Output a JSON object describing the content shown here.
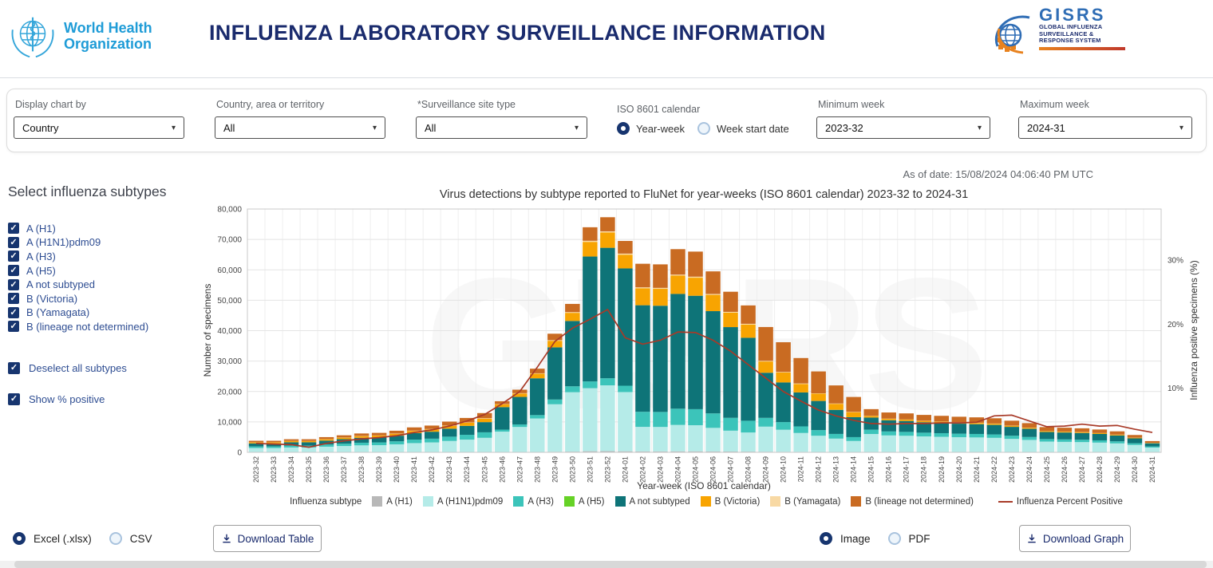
{
  "header": {
    "who_logo": {
      "line1": "World Health",
      "line2": "Organization"
    },
    "title": "INFLUENZA LABORATORY SURVEILLANCE INFORMATION",
    "gisrs_logo": {
      "acronym": "GISRS",
      "line1": "GLOBAL INFLUENZA",
      "line2": "SURVEILLANCE &",
      "line3": "RESPONSE SYSTEM"
    }
  },
  "filters": {
    "display_chart_by": {
      "label": "Display chart by",
      "value": "Country"
    },
    "country": {
      "label": "Country, area or territory",
      "value": "All"
    },
    "site_type": {
      "label": "*Surveillance site type",
      "value": "All"
    },
    "calendar": {
      "label": "ISO 8601 calendar",
      "options": [
        {
          "label": "Year-week",
          "selected": true
        },
        {
          "label": "Week start date",
          "selected": false
        }
      ]
    },
    "min_week": {
      "label": "Minimum week",
      "value": "2023-32"
    },
    "max_week": {
      "label": "Maximum week",
      "value": "2024-31"
    }
  },
  "as_of": "As of date: 15/08/2024 04:06:40 PM UTC",
  "sidebar": {
    "heading": "Select influenza subtypes",
    "subtypes": [
      {
        "label": "A (H1)",
        "checked": true
      },
      {
        "label": "A (H1N1)pdm09",
        "checked": true
      },
      {
        "label": "A (H3)",
        "checked": true
      },
      {
        "label": "A (H5)",
        "checked": true
      },
      {
        "label": "A not subtyped",
        "checked": true
      },
      {
        "label": "B (Victoria)",
        "checked": true
      },
      {
        "label": "B (Yamagata)",
        "checked": true
      },
      {
        "label": "B (lineage not determined)",
        "checked": true
      }
    ],
    "deselect_all": {
      "label": "Deselect all subtypes",
      "checked": true
    },
    "show_positive": {
      "label": "Show % positive",
      "checked": true
    }
  },
  "chart_data": {
    "type": "bar",
    "stacked": true,
    "title": "Virus detections by subtype reported to FluNet for year-weeks (ISO 8601 calendar) 2023-32 to 2024-31",
    "xlabel": "Year-week (ISO 8601 calendar)",
    "ylabel_left": "Number of specimens",
    "ylabel_right": "Influenza positive specimens (%)",
    "legend_title": "Influenza subtype",
    "ylim_left": [
      0,
      80000
    ],
    "ylim_right": [
      0,
      38
    ],
    "yticks_left": [
      "0",
      "10,000",
      "20,000",
      "30,000",
      "40,000",
      "50,000",
      "60,000",
      "70,000",
      "80,000"
    ],
    "yticks_right": [
      "10%",
      "20%",
      "30%"
    ],
    "grid": true,
    "legend_position": "bottom",
    "watermark": "GISRS",
    "categories": [
      "2023-32",
      "2023-33",
      "2023-34",
      "2023-35",
      "2023-36",
      "2023-37",
      "2023-38",
      "2023-39",
      "2023-40",
      "2023-41",
      "2023-42",
      "2023-43",
      "2023-44",
      "2023-45",
      "2023-46",
      "2023-47",
      "2023-48",
      "2023-49",
      "2023-50",
      "2023-51",
      "2023-52",
      "2024-01",
      "2024-02",
      "2024-03",
      "2024-04",
      "2024-05",
      "2024-06",
      "2024-07",
      "2024-08",
      "2024-09",
      "2024-10",
      "2024-11",
      "2024-12",
      "2024-13",
      "2024-14",
      "2024-15",
      "2024-16",
      "2024-17",
      "2024-18",
      "2024-19",
      "2024-20",
      "2024-21",
      "2024-22",
      "2024-23",
      "2024-24",
      "2024-25",
      "2024-26",
      "2024-27",
      "2024-28",
      "2024-29",
      "2024-30",
      "2024-31"
    ],
    "series": [
      {
        "name": "A (H1)",
        "color": "#b8b8b8",
        "values": [
          40,
          40,
          40,
          40,
          50,
          60,
          60,
          60,
          70,
          80,
          90,
          100,
          110,
          130,
          80,
          100,
          140,
          200,
          240,
          370,
          390,
          350,
          310,
          310,
          330,
          330,
          300,
          260,
          240,
          210,
          180,
          160,
          130,
          110,
          90,
          70,
          70,
          60,
          60,
          60,
          60,
          60,
          60,
          50,
          50,
          40,
          40,
          40,
          40,
          30,
          30,
          20
        ]
      },
      {
        "name": "A (H1N1)pdm09",
        "color": "#b5ebe8",
        "values": [
          1370,
          1370,
          1550,
          1550,
          1800,
          2020,
          2230,
          2300,
          2560,
          2950,
          3170,
          3640,
          4070,
          4640,
          6720,
          8240,
          11000,
          15600,
          19520,
          20720,
          21640,
          19460,
          8060,
          8030,
          8680,
          8580,
          7740,
          6860,
          6280,
          8240,
          7240,
          6200,
          5320,
          4400,
          3640,
          5960,
          5490,
          5380,
          5170,
          5040,
          4910,
          4830,
          4700,
          4370,
          4030,
          3490,
          3400,
          3320,
          3150,
          2900,
          2390,
          1550
        ]
      },
      {
        "name": "A (H3)",
        "color": "#3cc4ba",
        "values": [
          530,
          530,
          600,
          600,
          700,
          780,
          870,
          900,
          990,
          1150,
          1230,
          1410,
          1580,
          1810,
          670,
          820,
          1100,
          1560,
          1950,
          2220,
          2320,
          2090,
          4960,
          4940,
          5340,
          5280,
          4760,
          4220,
          3860,
          2880,
          2530,
          2170,
          1860,
          1540,
          1270,
          1420,
          1310,
          1280,
          1230,
          1200,
          1170,
          1150,
          1120,
          1040,
          960,
          830,
          810,
          790,
          750,
          690,
          570,
          370
        ]
      },
      {
        "name": "A (H5)",
        "color": "#66d226",
        "values": [
          0,
          0,
          0,
          0,
          0,
          0,
          0,
          0,
          0,
          0,
          0,
          0,
          0,
          0,
          0,
          0,
          0,
          0,
          0,
          0,
          0,
          0,
          0,
          0,
          0,
          0,
          0,
          0,
          0,
          0,
          0,
          0,
          0,
          0,
          0,
          0,
          0,
          0,
          0,
          0,
          0,
          0,
          0,
          0,
          0,
          0,
          0,
          0,
          0,
          0,
          0,
          0
        ]
      },
      {
        "name": "A not subtyped",
        "color": "#0e7478",
        "values": [
          990,
          990,
          1120,
          1120,
          1300,
          1460,
          1610,
          1660,
          1850,
          2130,
          2290,
          2630,
          2940,
          3350,
          7390,
          9060,
          12100,
          17160,
          21470,
          41070,
          42900,
          38570,
          35030,
          34920,
          37740,
          37290,
          33620,
          29830,
          27290,
          14830,
          13030,
          11160,
          9580,
          7920,
          6550,
          3980,
          3670,
          3580,
          3440,
          3360,
          3280,
          3220,
          3140,
          2910,
          2690,
          2320,
          2270,
          2210,
          2100,
          1930,
          1600,
          1040
        ]
      },
      {
        "name": "B (Victoria)",
        "color": "#f8a401",
        "values": [
          340,
          340,
          390,
          390,
          450,
          500,
          560,
          580,
          640,
          740,
          790,
          910,
          1020,
          1160,
          920,
          1130,
          1510,
          2150,
          2680,
          4810,
          5030,
          4520,
          5580,
          5560,
          6010,
          5940,
          5360,
          4750,
          4350,
          3710,
          3260,
          2790,
          2390,
          1980,
          1640,
          500,
          460,
          450,
          430,
          420,
          410,
          400,
          390,
          360,
          340,
          290,
          280,
          280,
          260,
          240,
          200,
          130
        ]
      },
      {
        "name": "B (Yamagata)",
        "color": "#f8d9a4",
        "values": [
          40,
          40,
          40,
          40,
          50,
          60,
          60,
          60,
          70,
          80,
          90,
          100,
          110,
          130,
          80,
          100,
          140,
          200,
          240,
          370,
          390,
          350,
          310,
          310,
          330,
          330,
          300,
          260,
          240,
          210,
          180,
          160,
          130,
          110,
          90,
          70,
          70,
          60,
          60,
          60,
          60,
          60,
          60,
          50,
          50,
          40,
          40,
          40,
          40,
          30,
          30,
          20
        ]
      },
      {
        "name": "B (lineage not determined)",
        "color": "#c96b22",
        "values": [
          490,
          490,
          560,
          560,
          650,
          720,
          810,
          840,
          920,
          1070,
          1140,
          1310,
          1470,
          1680,
          940,
          1150,
          1510,
          2130,
          2700,
          4440,
          4630,
          4160,
          7750,
          7730,
          8370,
          8250,
          7420,
          6620,
          6040,
          11120,
          9780,
          8360,
          7190,
          5940,
          4920,
          2200,
          2030,
          1990,
          1910,
          1860,
          1810,
          1780,
          1730,
          1620,
          1480,
          1290,
          1260,
          1220,
          1160,
          1080,
          880,
          570
        ]
      }
    ],
    "line_series": {
      "name": "Influenza Percent Positive",
      "color": "#a83a28",
      "values": [
        1.4,
        1.3,
        1.2,
        0.8,
        1.4,
        1.8,
        2.1,
        2.3,
        2.6,
        3.1,
        3.5,
        4.1,
        4.9,
        5.9,
        7.6,
        9.5,
        13.3,
        17.3,
        19.4,
        20.8,
        22.3,
        17.9,
        16.9,
        17.5,
        18.8,
        18.7,
        17.5,
        15.8,
        13.7,
        11.6,
        9.5,
        8.0,
        6.6,
        5.7,
        5.0,
        4.5,
        4.4,
        4.5,
        4.5,
        4.6,
        4.6,
        4.7,
        5.7,
        5.8,
        4.9,
        4.0,
        4.1,
        4.4,
        4.1,
        4.2,
        3.6,
        3.1
      ]
    }
  },
  "downloads": {
    "table_formats": [
      {
        "label": "Excel (.xlsx)",
        "selected": true
      },
      {
        "label": "CSV",
        "selected": false
      }
    ],
    "table_button": "Download Table",
    "graph_formats": [
      {
        "label": "Image",
        "selected": true
      },
      {
        "label": "PDF",
        "selected": false
      }
    ],
    "graph_button": "Download Graph"
  }
}
